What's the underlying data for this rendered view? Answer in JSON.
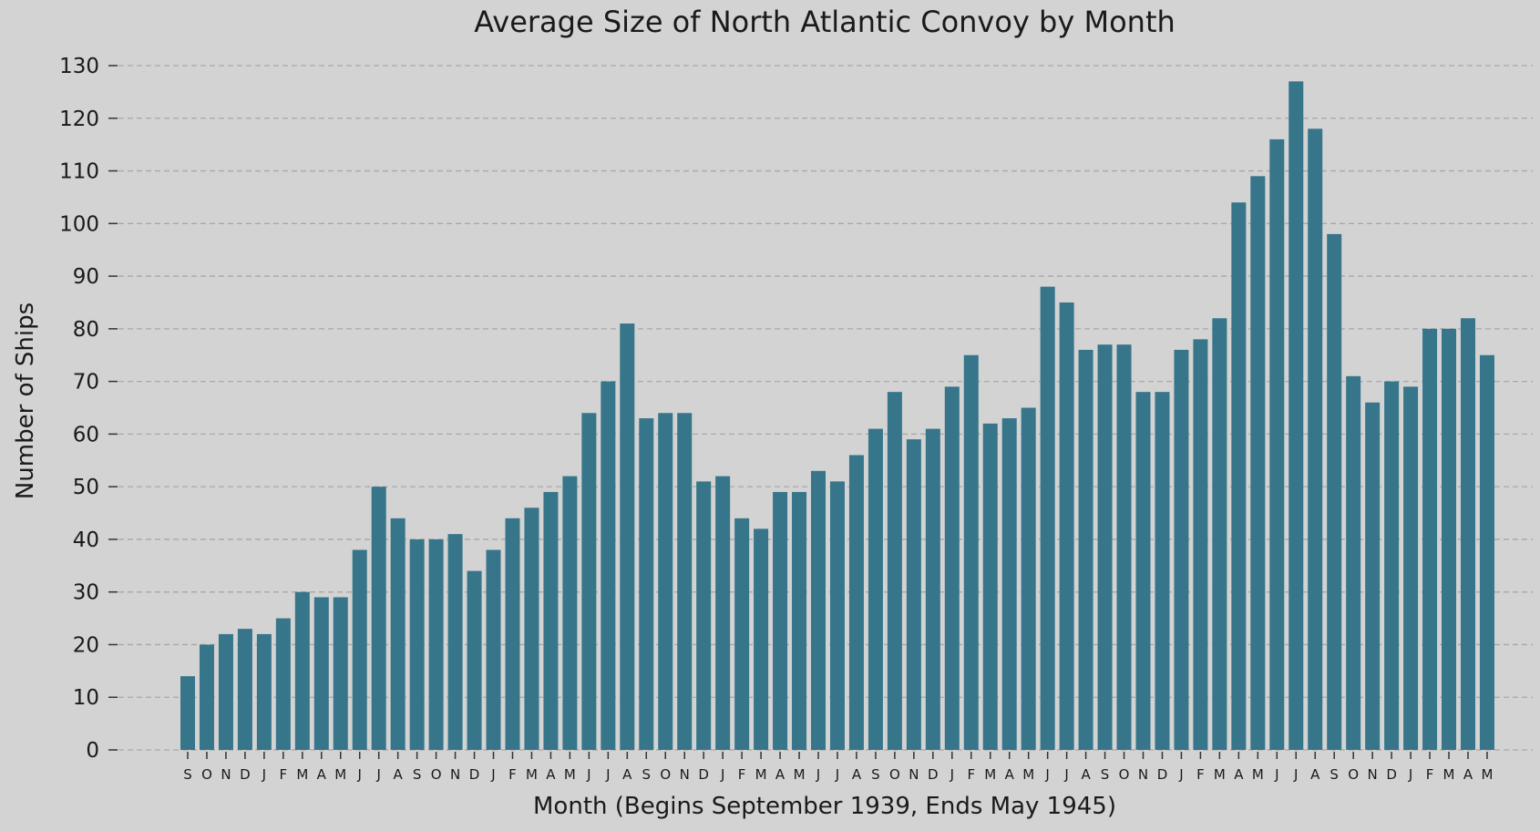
{
  "chart_data": {
    "type": "bar",
    "title": "Average Size of North Atlantic Convoy by Month",
    "xlabel": "Month (Begins September 1939, Ends May 1945)",
    "ylabel": "Number of Ships",
    "ylim": [
      0,
      130
    ],
    "yticks": [
      "0",
      "10",
      "20",
      "30",
      "40",
      "50",
      "60",
      "70",
      "80",
      "90",
      "100",
      "110",
      "120",
      "130"
    ],
    "grid": "horizontal dashed",
    "bar_color": "#36758a",
    "background_color": "#d3d3d3",
    "categories": [
      "S",
      "O",
      "N",
      "D",
      "J",
      "F",
      "M",
      "A",
      "M",
      "J",
      "J",
      "A",
      "S",
      "O",
      "N",
      "D",
      "J",
      "F",
      "M",
      "A",
      "M",
      "J",
      "J",
      "A",
      "S",
      "O",
      "N",
      "D",
      "J",
      "F",
      "M",
      "A",
      "M",
      "J",
      "J",
      "A",
      "S",
      "O",
      "N",
      "D",
      "J",
      "F",
      "M",
      "A",
      "M",
      "J",
      "J",
      "A",
      "S",
      "O",
      "N",
      "D",
      "J",
      "F",
      "M",
      "A",
      "M",
      "J",
      "J",
      "A",
      "S",
      "O",
      "N",
      "D",
      "J",
      "F",
      "M",
      "A",
      "M"
    ],
    "values": [
      14,
      20,
      22,
      23,
      22,
      25,
      30,
      29,
      29,
      38,
      50,
      44,
      40,
      40,
      41,
      34,
      38,
      44,
      46,
      49,
      52,
      64,
      70,
      81,
      63,
      64,
      64,
      51,
      52,
      44,
      42,
      49,
      49,
      53,
      51,
      56,
      61,
      68,
      59,
      61,
      69,
      75,
      62,
      63,
      65,
      88,
      85,
      76,
      77,
      77,
      68,
      68,
      76,
      78,
      82,
      104,
      109,
      116,
      127,
      118,
      98,
      71,
      66,
      70,
      69,
      80,
      80,
      82,
      75
    ]
  }
}
